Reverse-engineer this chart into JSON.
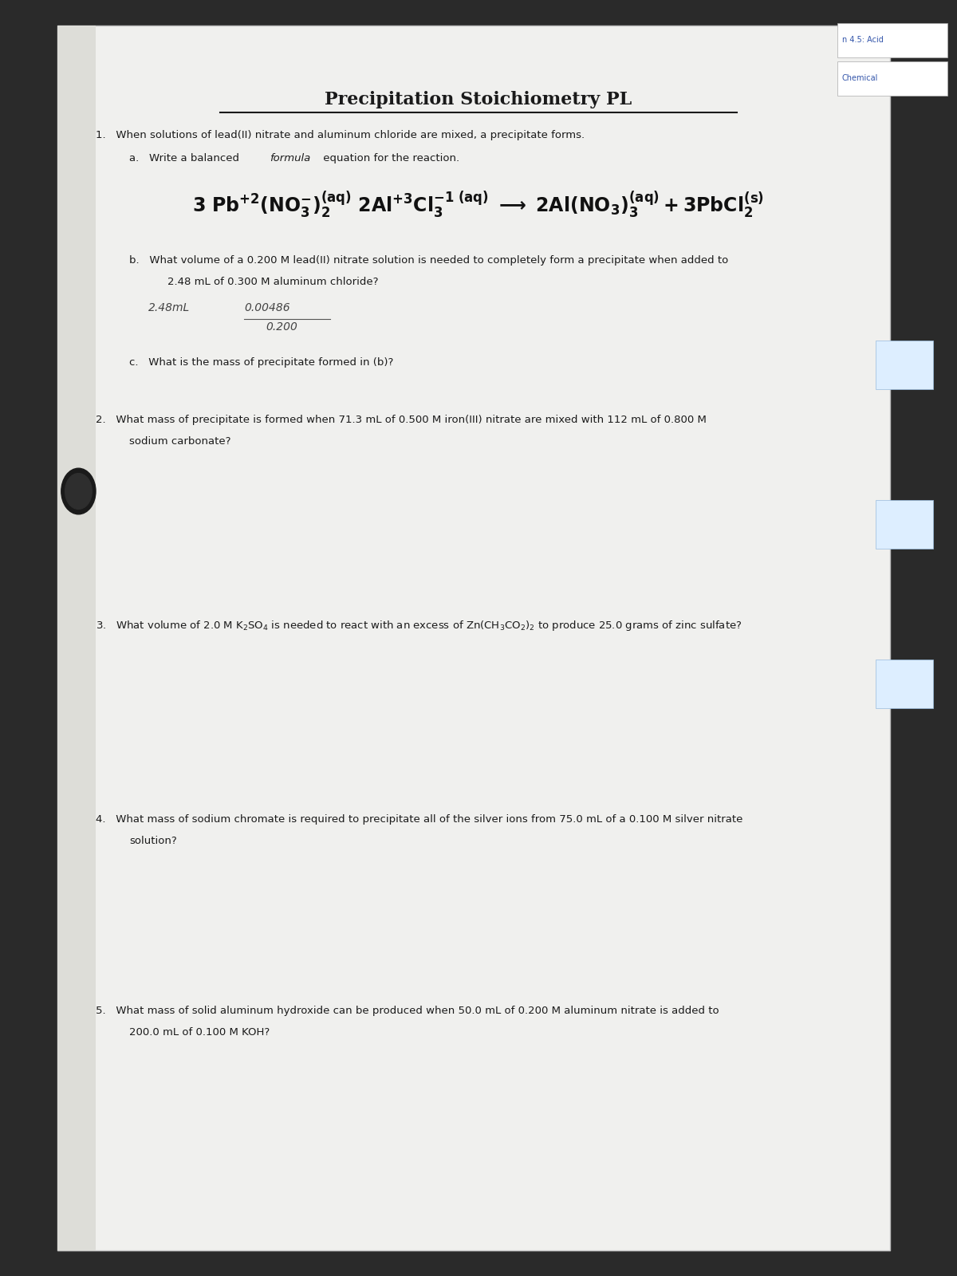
{
  "title": "Precipitation Stoichiometry PL",
  "bg_dark": "#2a2a2a",
  "bg_paper": "#f0f0ee",
  "bg_paper2": "#e8e8e6",
  "text_color": "#1a1a1a",
  "text_gray": "#444444",
  "corner_label1": "n 4.5: Acid",
  "corner_label2": "Chemical",
  "q1_intro": "1.   When solutions of lead(II) nitrate and aluminum chloride are mixed, a precipitate forms.",
  "q1a_label": "a.   Write a balanced formula equation for the reaction.",
  "q1b_line1": "b.   What volume of a 0.200 M lead(II) nitrate solution is needed to completely form a precipitate when added to",
  "q1b_line2": "2.48 mL of 0.300 M aluminum chloride?",
  "q1b_work1": "2.48mL",
  "q1b_work2": "0.00486",
  "q1b_work3": "0.200",
  "q1c_label": "c.   What is the mass of precipitate formed in (b)?",
  "q2_line1": "2.   What mass of precipitate is formed when 71.3 mL of 0.500 M iron(III) nitrate are mixed with 112 mL of 0.800 M",
  "q2_line2": "sodium carbonate?",
  "q3": "3.   What volume of 2.0 M K₂SO₄ is needed to react with an excess of Zn(CH₃CO₂)₂ to produce 25.0 grams of zinc sulfate?",
  "q4_line1": "4.   What mass of sodium chromate is required to precipitate all of the silver ions from 75.0 mL of a 0.100 M silver nitrate",
  "q4_line2": "solution?",
  "q5_line1": "5.   What mass of solid aluminum hydroxide can be produced when 50.0 mL of 0.200 M aluminum nitrate is added to",
  "q5_line2": "200.0 mL of 0.100 M KOH?"
}
